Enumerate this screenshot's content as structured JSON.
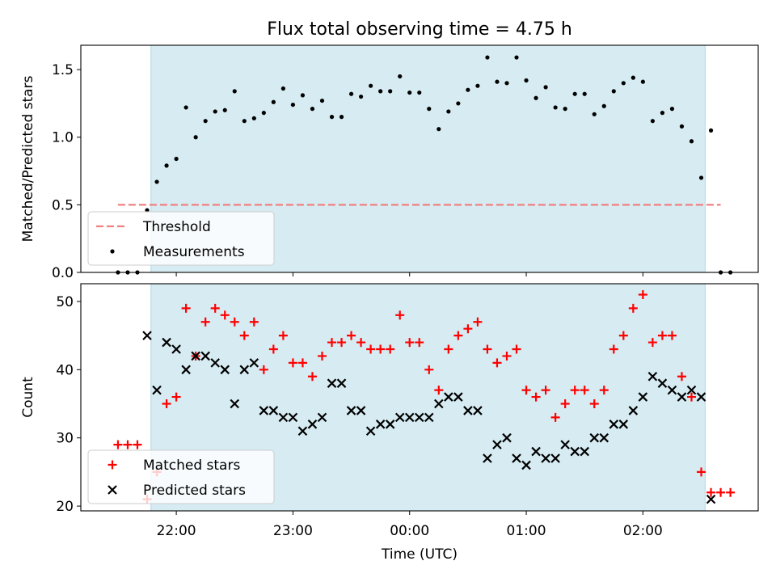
{
  "chart_data": {
    "title": "Flux total observing time = 4.75 h",
    "xlabel": "Time (UTC)",
    "x_ticks": [
      "22:00",
      "23:00",
      "00:00",
      "01:00",
      "02:00"
    ],
    "x_unit": "hours since 21:00 UTC (times after midnight continue past 3.0)",
    "colors": {
      "observing_window": "#add8e6",
      "threshold": "#f08080",
      "matched": "#ff0000",
      "predicted": "#000000",
      "measurements": "#000000"
    },
    "panels": [
      {
        "type": "scatter",
        "ylabel": "Matched/Predicted stars",
        "ylim": [
          0,
          1.68
        ],
        "yticks": [
          "0.0",
          "0.5",
          "1.0",
          "1.5"
        ],
        "legend": [
          "Threshold",
          "Measurements"
        ],
        "legend_position": "lower-left",
        "observing_window": {
          "start": "21:47",
          "end": "02:32"
        },
        "threshold": {
          "name": "Threshold",
          "value": 0.5,
          "x_range": [
            "21:30",
            "02:40"
          ]
        },
        "series": [
          {
            "name": "Measurements",
            "marker": "dot",
            "points": [
              [
                "21:30",
                0.0
              ],
              [
                "21:35",
                0.0
              ],
              [
                "21:40",
                0.0
              ],
              [
                "21:45",
                0.46
              ],
              [
                "21:50",
                0.67
              ],
              [
                "21:55",
                0.79
              ],
              [
                "22:00",
                0.84
              ],
              [
                "22:05",
                1.22
              ],
              [
                "22:10",
                1.0
              ],
              [
                "22:15",
                1.12
              ],
              [
                "22:20",
                1.19
              ],
              [
                "22:25",
                1.2
              ],
              [
                "22:30",
                1.34
              ],
              [
                "22:35",
                1.12
              ],
              [
                "22:40",
                1.14
              ],
              [
                "22:45",
                1.18
              ],
              [
                "22:50",
                1.26
              ],
              [
                "22:55",
                1.36
              ],
              [
                "23:00",
                1.24
              ],
              [
                "23:05",
                1.31
              ],
              [
                "23:10",
                1.21
              ],
              [
                "23:15",
                1.27
              ],
              [
                "23:20",
                1.15
              ],
              [
                "23:25",
                1.15
              ],
              [
                "23:30",
                1.32
              ],
              [
                "23:35",
                1.3
              ],
              [
                "23:40",
                1.38
              ],
              [
                "23:45",
                1.34
              ],
              [
                "23:50",
                1.34
              ],
              [
                "23:55",
                1.45
              ],
              [
                "00:00",
                1.33
              ],
              [
                "00:05",
                1.33
              ],
              [
                "00:10",
                1.21
              ],
              [
                "00:15",
                1.06
              ],
              [
                "00:20",
                1.19
              ],
              [
                "00:25",
                1.25
              ],
              [
                "00:30",
                1.35
              ],
              [
                "00:35",
                1.38
              ],
              [
                "00:40",
                1.59
              ],
              [
                "00:45",
                1.41
              ],
              [
                "00:50",
                1.4
              ],
              [
                "00:55",
                1.59
              ],
              [
                "01:00",
                1.42
              ],
              [
                "01:05",
                1.29
              ],
              [
                "01:10",
                1.37
              ],
              [
                "01:15",
                1.22
              ],
              [
                "01:20",
                1.21
              ],
              [
                "01:25",
                1.32
              ],
              [
                "01:30",
                1.32
              ],
              [
                "01:35",
                1.17
              ],
              [
                "01:40",
                1.23
              ],
              [
                "01:45",
                1.34
              ],
              [
                "01:50",
                1.4
              ],
              [
                "01:55",
                1.44
              ],
              [
                "02:00",
                1.41
              ],
              [
                "02:05",
                1.12
              ],
              [
                "02:10",
                1.18
              ],
              [
                "02:15",
                1.21
              ],
              [
                "02:20",
                1.08
              ],
              [
                "02:25",
                0.97
              ],
              [
                "02:30",
                0.7
              ],
              [
                "02:35",
                1.05
              ],
              [
                "02:40",
                0.0
              ],
              [
                "02:45",
                0.0
              ]
            ]
          }
        ]
      },
      {
        "type": "scatter",
        "ylabel": "Count",
        "ylim": [
          19.3,
          52.6
        ],
        "yticks": [
          "20",
          "30",
          "40",
          "50"
        ],
        "legend": [
          "Matched stars",
          "Predicted stars"
        ],
        "legend_position": "lower-left",
        "observing_window": {
          "start": "21:47",
          "end": "02:32"
        },
        "series": [
          {
            "name": "Matched stars",
            "marker": "plus",
            "points": [
              [
                "21:30",
                29
              ],
              [
                "21:35",
                29
              ],
              [
                "21:40",
                29
              ],
              [
                "21:45",
                21
              ],
              [
                "21:50",
                25
              ],
              [
                "21:55",
                35
              ],
              [
                "22:00",
                36
              ],
              [
                "22:05",
                49
              ],
              [
                "22:10",
                42
              ],
              [
                "22:15",
                47
              ],
              [
                "22:20",
                49
              ],
              [
                "22:25",
                48
              ],
              [
                "22:30",
                47
              ],
              [
                "22:35",
                45
              ],
              [
                "22:40",
                47
              ],
              [
                "22:45",
                40
              ],
              [
                "22:50",
                43
              ],
              [
                "22:55",
                45
              ],
              [
                "23:00",
                41
              ],
              [
                "23:05",
                41
              ],
              [
                "23:10",
                39
              ],
              [
                "23:15",
                42
              ],
              [
                "23:20",
                44
              ],
              [
                "23:25",
                44
              ],
              [
                "23:30",
                45
              ],
              [
                "23:35",
                44
              ],
              [
                "23:40",
                43
              ],
              [
                "23:45",
                43
              ],
              [
                "23:50",
                43
              ],
              [
                "23:55",
                48
              ],
              [
                "00:00",
                44
              ],
              [
                "00:05",
                44
              ],
              [
                "00:10",
                40
              ],
              [
                "00:15",
                37
              ],
              [
                "00:20",
                43
              ],
              [
                "00:25",
                45
              ],
              [
                "00:30",
                46
              ],
              [
                "00:35",
                47
              ],
              [
                "00:40",
                43
              ],
              [
                "00:45",
                41
              ],
              [
                "00:50",
                42
              ],
              [
                "00:55",
                43
              ],
              [
                "01:00",
                37
              ],
              [
                "01:05",
                36
              ],
              [
                "01:10",
                37
              ],
              [
                "01:15",
                33
              ],
              [
                "01:20",
                35
              ],
              [
                "01:25",
                37
              ],
              [
                "01:30",
                37
              ],
              [
                "01:35",
                35
              ],
              [
                "01:40",
                37
              ],
              [
                "01:45",
                43
              ],
              [
                "01:50",
                45
              ],
              [
                "01:55",
                49
              ],
              [
                "02:00",
                51
              ],
              [
                "02:05",
                44
              ],
              [
                "02:10",
                45
              ],
              [
                "02:15",
                45
              ],
              [
                "02:20",
                39
              ],
              [
                "02:25",
                36
              ],
              [
                "02:30",
                25
              ],
              [
                "02:35",
                22
              ],
              [
                "02:40",
                22
              ],
              [
                "02:45",
                22
              ]
            ]
          },
          {
            "name": "Predicted stars",
            "marker": "x",
            "points": [
              [
                "21:45",
                45
              ],
              [
                "21:50",
                37
              ],
              [
                "21:55",
                44
              ],
              [
                "22:00",
                43
              ],
              [
                "22:05",
                40
              ],
              [
                "22:10",
                42
              ],
              [
                "22:15",
                42
              ],
              [
                "22:20",
                41
              ],
              [
                "22:25",
                40
              ],
              [
                "22:30",
                35
              ],
              [
                "22:35",
                40
              ],
              [
                "22:40",
                41
              ],
              [
                "22:45",
                34
              ],
              [
                "22:50",
                34
              ],
              [
                "22:55",
                33
              ],
              [
                "23:00",
                33
              ],
              [
                "23:05",
                31
              ],
              [
                "23:10",
                32
              ],
              [
                "23:15",
                33
              ],
              [
                "23:20",
                38
              ],
              [
                "23:25",
                38
              ],
              [
                "23:30",
                34
              ],
              [
                "23:35",
                34
              ],
              [
                "23:40",
                31
              ],
              [
                "23:45",
                32
              ],
              [
                "23:50",
                32
              ],
              [
                "23:55",
                33
              ],
              [
                "00:00",
                33
              ],
              [
                "00:05",
                33
              ],
              [
                "00:10",
                33
              ],
              [
                "00:15",
                35
              ],
              [
                "00:20",
                36
              ],
              [
                "00:25",
                36
              ],
              [
                "00:30",
                34
              ],
              [
                "00:35",
                34
              ],
              [
                "00:40",
                27
              ],
              [
                "00:45",
                29
              ],
              [
                "00:50",
                30
              ],
              [
                "00:55",
                27
              ],
              [
                "01:00",
                26
              ],
              [
                "01:05",
                28
              ],
              [
                "01:10",
                27
              ],
              [
                "01:15",
                27
              ],
              [
                "01:20",
                29
              ],
              [
                "01:25",
                28
              ],
              [
                "01:30",
                28
              ],
              [
                "01:35",
                30
              ],
              [
                "01:40",
                30
              ],
              [
                "01:45",
                32
              ],
              [
                "01:50",
                32
              ],
              [
                "01:55",
                34
              ],
              [
                "02:00",
                36
              ],
              [
                "02:05",
                39
              ],
              [
                "02:10",
                38
              ],
              [
                "02:15",
                37
              ],
              [
                "02:20",
                36
              ],
              [
                "02:25",
                37
              ],
              [
                "02:30",
                36
              ],
              [
                "02:35",
                21
              ]
            ]
          }
        ]
      }
    ]
  }
}
